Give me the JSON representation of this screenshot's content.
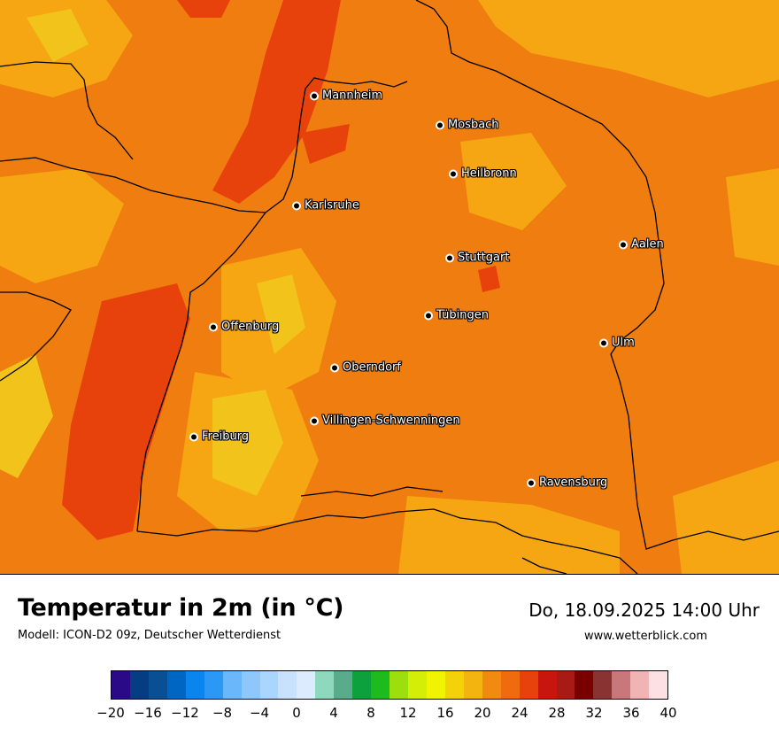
{
  "title": "Temperatur in 2m (in °C)",
  "subtitle": "Modell: ICON-D2 09z, Deutscher Wetterdienst",
  "datetime": "Do, 18.09.2025 14:00 Uhr",
  "website": "www.wetterblick.com",
  "colors": {
    "base_fill": "#f07d0f",
    "warm_fill": "#e8420c",
    "mild_fill": "#f5a612",
    "cool_fill": "#f2c31a",
    "border_line": "#000000"
  },
  "cities": [
    {
      "name": "Mannheim"
    },
    {
      "name": "Mosbach"
    },
    {
      "name": "Heilbronn"
    },
    {
      "name": "Karlsruhe"
    },
    {
      "name": "Aalen"
    },
    {
      "name": "Stuttgart"
    },
    {
      "name": "Tübingen"
    },
    {
      "name": "Offenburg"
    },
    {
      "name": "Ulm"
    },
    {
      "name": "Oberndorf"
    },
    {
      "name": "Villingen-Schwenningen"
    },
    {
      "name": "Freiburg"
    },
    {
      "name": "Ravensburg"
    }
  ],
  "colorbar": {
    "colors": [
      "#2b0a88",
      "#053c82",
      "#0a4f94",
      "#0066c4",
      "#0a85ee",
      "#2b98f5",
      "#6ab7fb",
      "#8ec8fb",
      "#aad5fc",
      "#c8e2fd",
      "#dcebfd",
      "#8ed9be",
      "#5aab8b",
      "#0da13e",
      "#1dbb1b",
      "#9ddf0d",
      "#d4ee08",
      "#f0f400",
      "#f3d20a",
      "#f3b410",
      "#f08a10",
      "#f06a0e",
      "#e8420c",
      "#c8160f",
      "#a81a16",
      "#7a0000",
      "#8a3333",
      "#c8787a",
      "#f0b4b4",
      "#fde0e3"
    ],
    "tick_labels": [
      "−20",
      "−16",
      "−12",
      "−8",
      "−4",
      "0",
      "4",
      "8",
      "12",
      "16",
      "20",
      "24",
      "28",
      "32",
      "36",
      "40"
    ]
  }
}
